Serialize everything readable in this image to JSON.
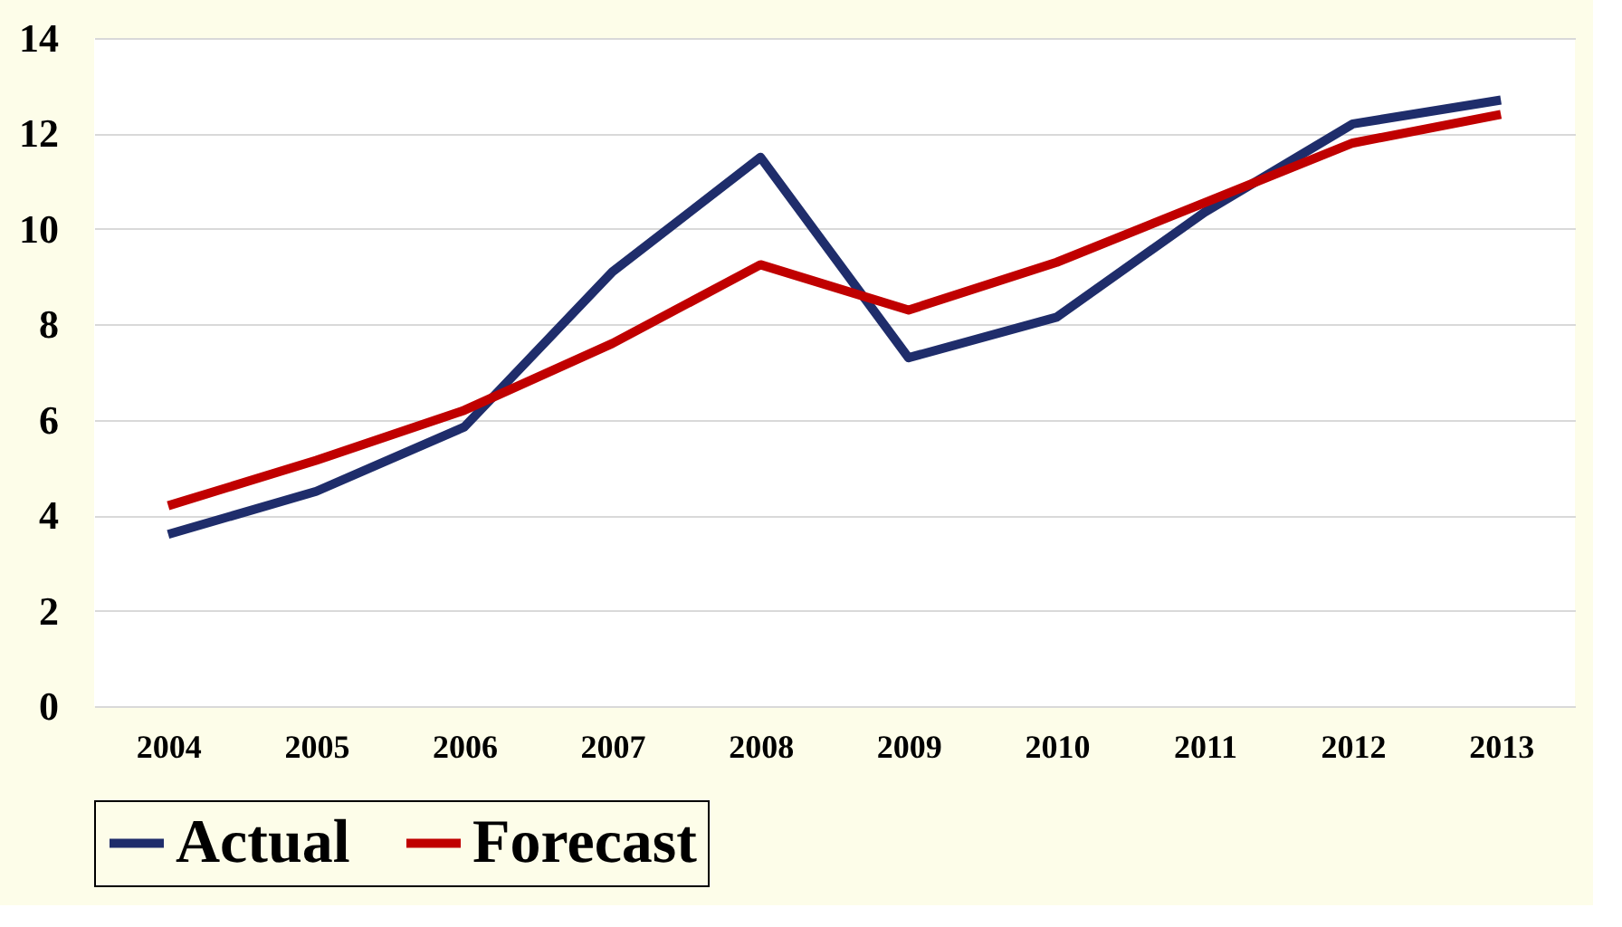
{
  "chart_data": {
    "type": "line",
    "categories": [
      "2004",
      "2005",
      "2006",
      "2007",
      "2008",
      "2009",
      "2010",
      "2011",
      "2012",
      "2013"
    ],
    "series": [
      {
        "name": "Actual",
        "color": "#1f2d6b",
        "values": [
          3.6,
          4.5,
          5.85,
          9.1,
          11.5,
          7.3,
          8.15,
          10.35,
          12.2,
          12.7
        ]
      },
      {
        "name": "Forecast",
        "color": "#c00000",
        "values": [
          4.2,
          5.15,
          6.2,
          7.6,
          9.25,
          8.3,
          9.3,
          10.55,
          11.8,
          12.4
        ]
      }
    ],
    "ylim": [
      0,
      14
    ],
    "yticks": [
      0,
      2,
      4,
      6,
      8,
      10,
      12,
      14
    ],
    "grid": "y",
    "legend": "bottom",
    "marker": "none",
    "line_style": "solid"
  }
}
